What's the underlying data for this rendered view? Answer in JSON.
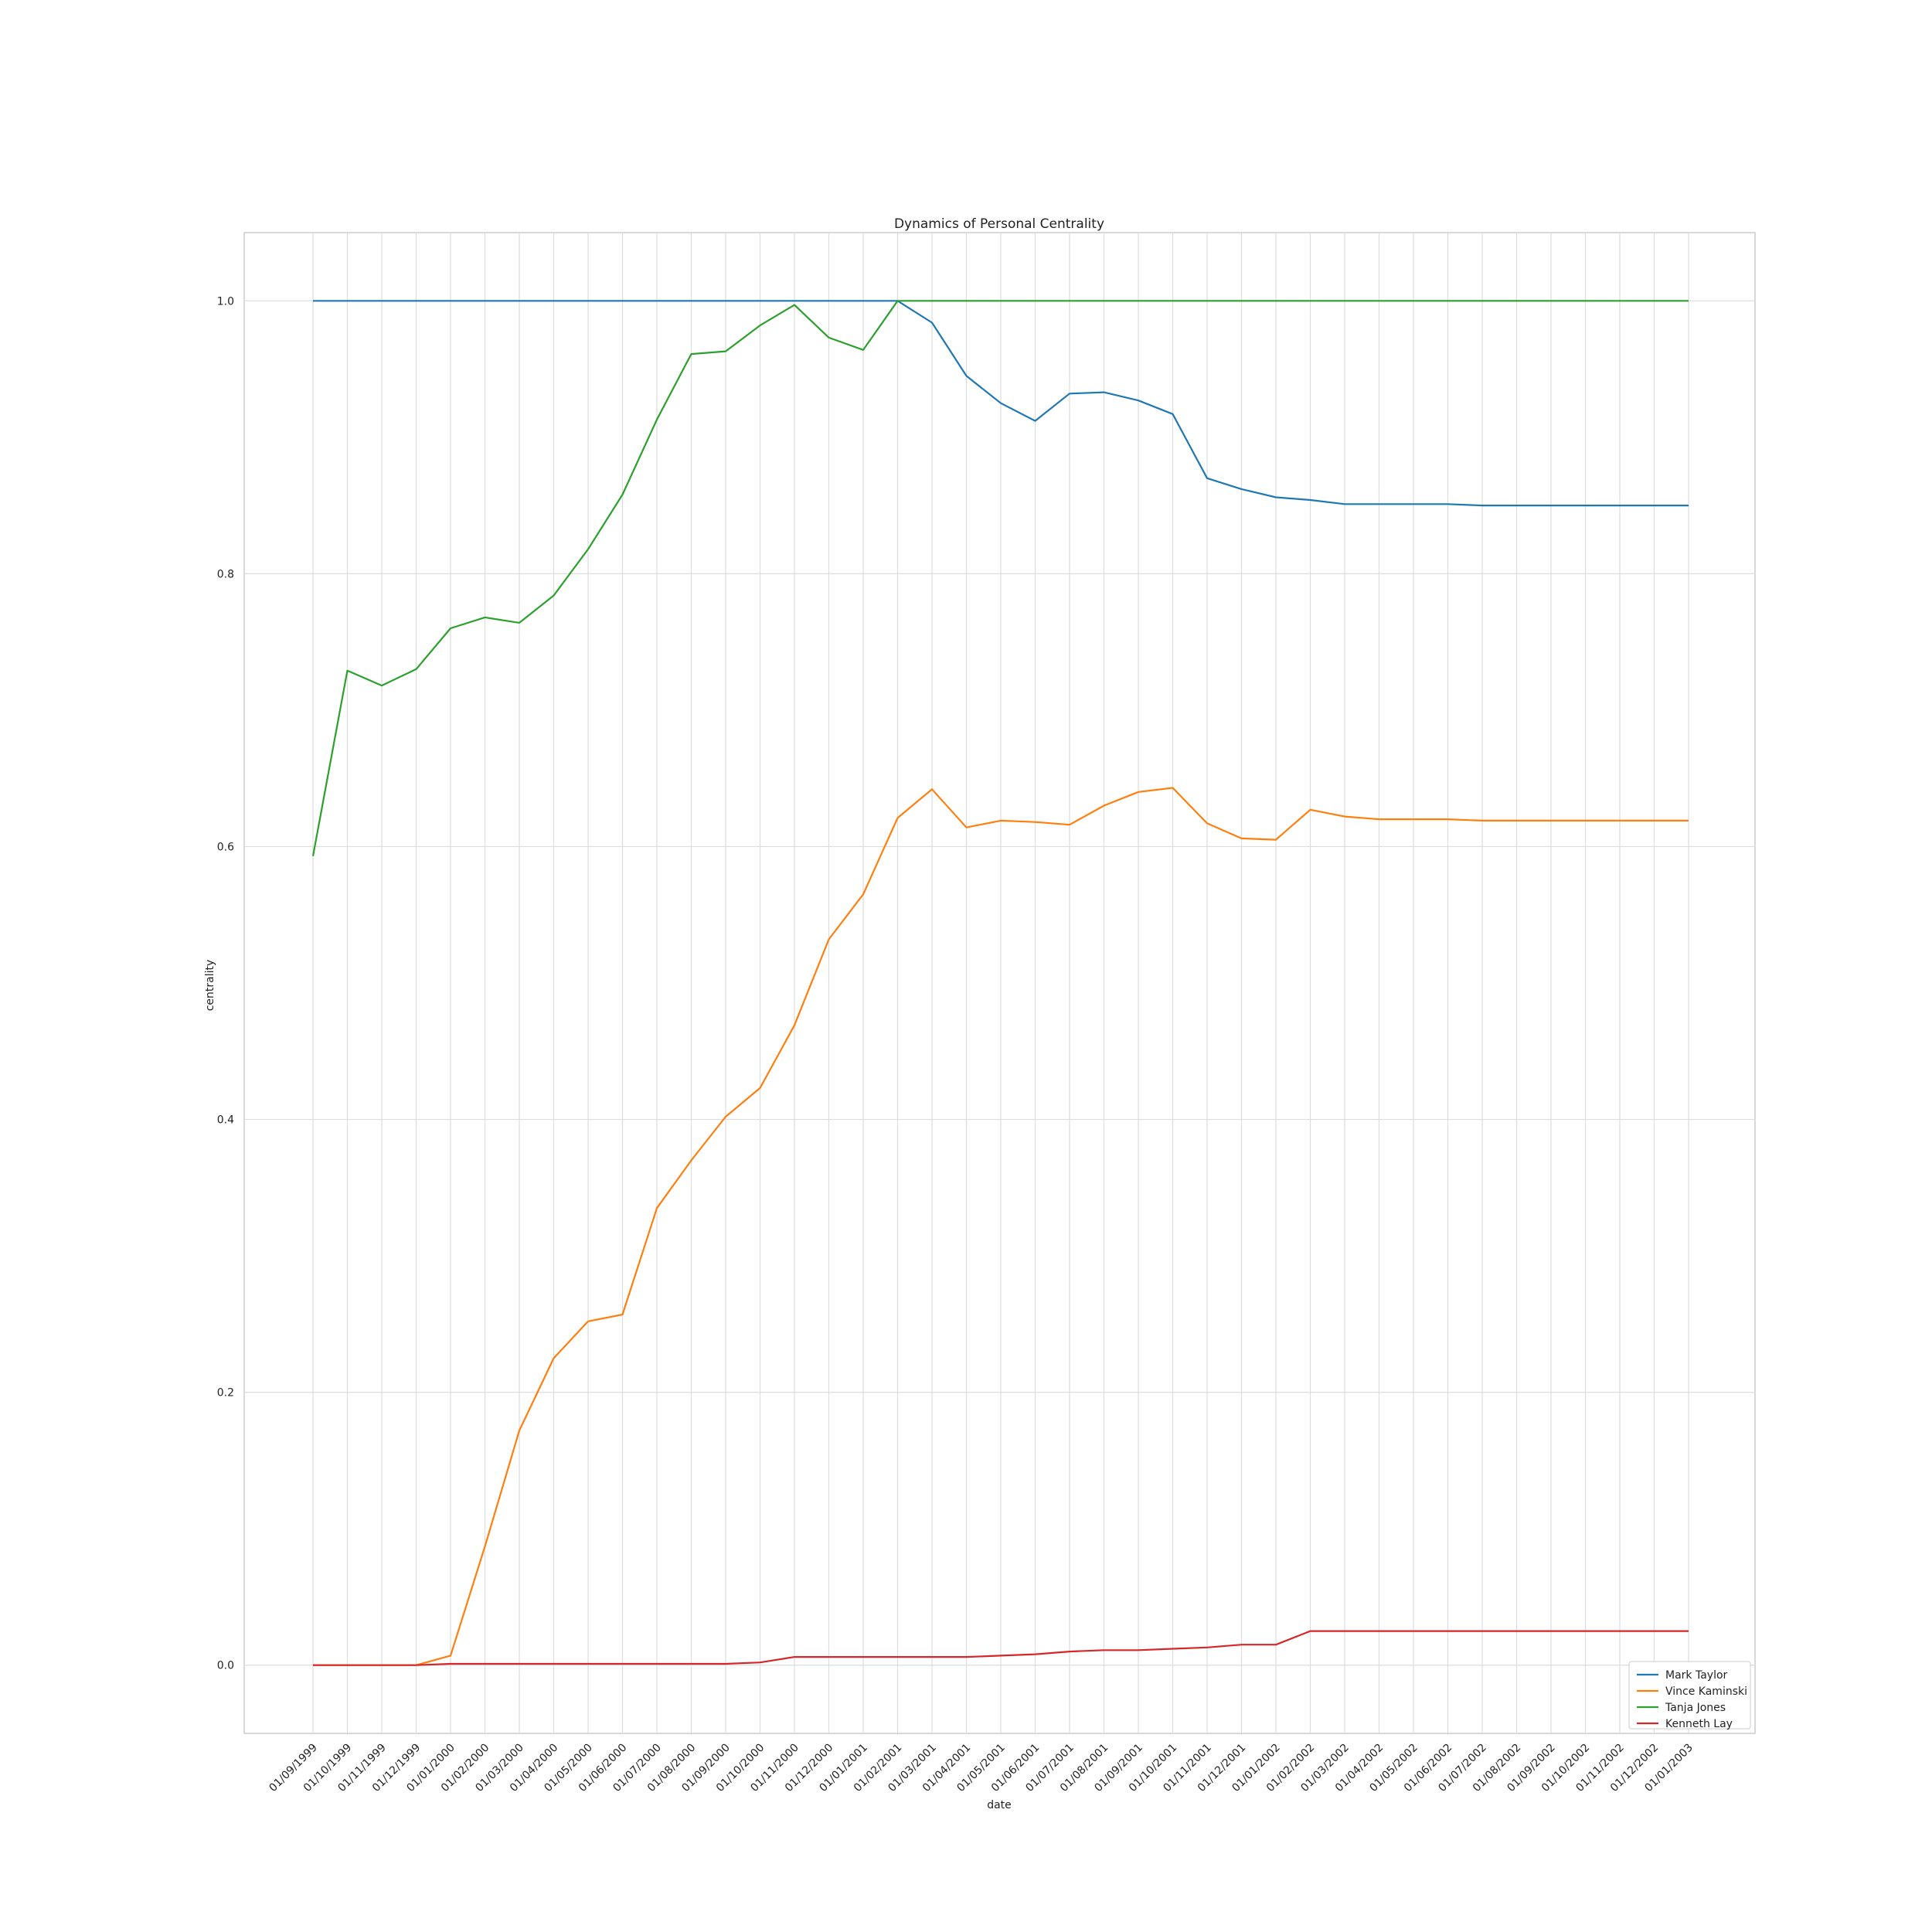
{
  "chart_data": {
    "type": "line",
    "title": "Dynamics of Personal Centrality",
    "xlabel": "date",
    "ylabel": "centrality",
    "ylim": [
      -0.05,
      1.05
    ],
    "yticks": [
      "0.0",
      "0.2",
      "0.4",
      "0.6",
      "0.8",
      "1.0"
    ],
    "grid": true,
    "legend_position": "bottom-right",
    "categories": [
      "01/09/1999",
      "01/10/1999",
      "01/11/1999",
      "01/12/1999",
      "01/01/2000",
      "01/02/2000",
      "01/03/2000",
      "01/04/2000",
      "01/05/2000",
      "01/06/2000",
      "01/07/2000",
      "01/08/2000",
      "01/09/2000",
      "01/10/2000",
      "01/11/2000",
      "01/12/2000",
      "01/01/2001",
      "01/02/2001",
      "01/03/2001",
      "01/04/2001",
      "01/05/2001",
      "01/06/2001",
      "01/07/2001",
      "01/08/2001",
      "01/09/2001",
      "01/10/2001",
      "01/11/2001",
      "01/12/2001",
      "01/01/2002",
      "01/02/2002",
      "01/03/2002",
      "01/04/2002",
      "01/05/2002",
      "01/06/2002",
      "01/07/2002",
      "01/08/2002",
      "01/09/2002",
      "01/10/2002",
      "01/11/2002",
      "01/12/2002",
      "01/01/2003"
    ],
    "series": [
      {
        "name": "Mark Taylor",
        "color": "#1f77b4",
        "values": [
          1.0,
          1.0,
          1.0,
          1.0,
          1.0,
          1.0,
          1.0,
          1.0,
          1.0,
          1.0,
          1.0,
          1.0,
          1.0,
          1.0,
          1.0,
          1.0,
          1.0,
          1.0,
          0.984,
          0.945,
          0.925,
          0.912,
          0.932,
          0.933,
          0.927,
          0.917,
          0.87,
          0.862,
          0.856,
          0.854,
          0.851,
          0.851,
          0.851,
          0.851,
          0.85,
          0.85,
          0.85,
          0.85,
          0.85,
          0.85,
          0.85
        ]
      },
      {
        "name": "Vince Kaminski",
        "color": "#ff7f0e",
        "values": [
          0.0,
          0.0,
          0.0,
          0.0,
          0.007,
          0.087,
          0.172,
          0.225,
          0.252,
          0.257,
          0.335,
          0.37,
          0.402,
          0.423,
          0.469,
          0.532,
          0.565,
          0.621,
          0.642,
          0.614,
          0.619,
          0.618,
          0.616,
          0.63,
          0.64,
          0.643,
          0.617,
          0.606,
          0.605,
          0.627,
          0.622,
          0.62,
          0.62,
          0.62,
          0.619,
          0.619,
          0.619,
          0.619,
          0.619,
          0.619,
          0.619
        ]
      },
      {
        "name": "Tanja Jones",
        "color": "#2ca02c",
        "values": [
          0.593,
          0.729,
          0.718,
          0.73,
          0.76,
          0.768,
          0.764,
          0.784,
          0.818,
          0.858,
          0.913,
          0.961,
          0.963,
          0.982,
          0.997,
          0.973,
          0.964,
          1.0,
          1.0,
          1.0,
          1.0,
          1.0,
          1.0,
          1.0,
          1.0,
          1.0,
          1.0,
          1.0,
          1.0,
          1.0,
          1.0,
          1.0,
          1.0,
          1.0,
          1.0,
          1.0,
          1.0,
          1.0,
          1.0,
          1.0,
          1.0
        ]
      },
      {
        "name": "Kenneth Lay",
        "color": "#d62728",
        "values": [
          0.0,
          0.0,
          0.0,
          0.0,
          0.001,
          0.001,
          0.001,
          0.001,
          0.001,
          0.001,
          0.001,
          0.001,
          0.001,
          0.002,
          0.006,
          0.006,
          0.006,
          0.006,
          0.006,
          0.006,
          0.007,
          0.008,
          0.01,
          0.011,
          0.011,
          0.012,
          0.013,
          0.015,
          0.015,
          0.025,
          0.025,
          0.025,
          0.025,
          0.025,
          0.025,
          0.025,
          0.025,
          0.025,
          0.025,
          0.025,
          0.025
        ]
      }
    ]
  }
}
